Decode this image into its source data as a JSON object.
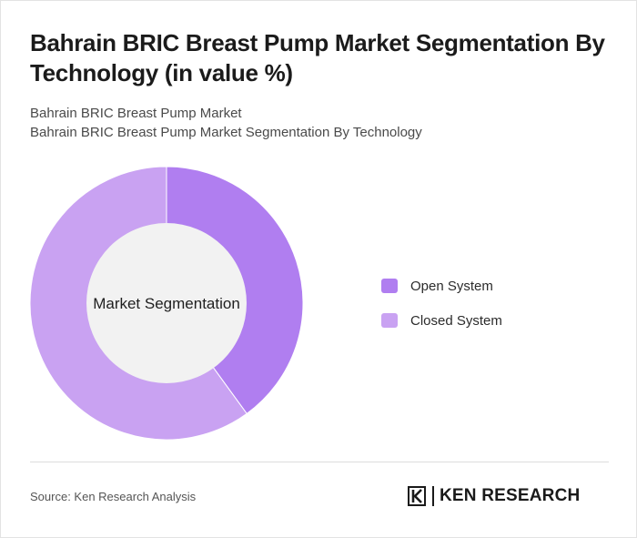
{
  "header": {
    "title": "Bahrain BRIC Breast Pump Market Segmentation By Technology (in value %)",
    "subtitle_line1": "Bahrain BRIC Breast Pump Market",
    "subtitle_line2": "Bahrain BRIC Breast Pump Market Segmentation By Technology"
  },
  "chart_data": {
    "type": "pie",
    "variant": "donut",
    "center_label": "Market Segmentation",
    "start_angle_deg": 0,
    "direction": "clockwise",
    "categories": [
      "Open System",
      "Closed System"
    ],
    "values": [
      40,
      60
    ],
    "colors": [
      "#b07ef0",
      "#c9a2f2"
    ],
    "legend_position": "right"
  },
  "footer": {
    "source": "Source: Ken Research Analysis",
    "logo_text": "KEN RESEARCH",
    "logo_icon": "ken-research-logo-icon"
  }
}
